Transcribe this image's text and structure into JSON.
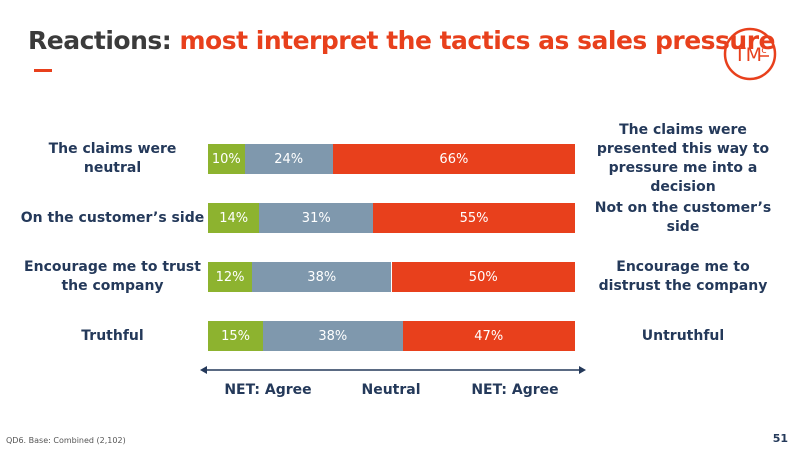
{
  "title_lead": "Reactions:",
  "title_rest": "most interpret the tactics as sales pressure",
  "logo": {
    "main": "TM",
    "sup": "c"
  },
  "footnote": "QD6. Base: Combined (2,102)",
  "page_number": "51",
  "chart_data": {
    "type": "stacked-bar-100",
    "categories": [
      "The claims were neutral",
      "On the customer’s side",
      "Encourage me to trust the company",
      "Truthful"
    ],
    "right_labels": [
      "The claims were presented this way to pressure me into a decision",
      "Not on the customer’s side",
      "Encourage me to distrust the company",
      "Untruthful"
    ],
    "series": [
      {
        "name": "NET: Agree",
        "color": "#8db32f",
        "values": [
          10,
          14,
          12,
          15
        ],
        "value_labels": [
          "10%",
          "14%",
          "12%",
          "15%"
        ]
      },
      {
        "name": "Neutral",
        "color": "#7f98ad",
        "values": [
          24,
          31,
          38,
          38
        ],
        "value_labels": [
          "24%",
          "31%",
          "38%",
          "38%"
        ]
      },
      {
        "name": "NET: Agree",
        "color": "#e8401c",
        "values": [
          66,
          55,
          50,
          47
        ],
        "value_labels": [
          "66%",
          "55%",
          "50%",
          "47%"
        ]
      }
    ]
  }
}
